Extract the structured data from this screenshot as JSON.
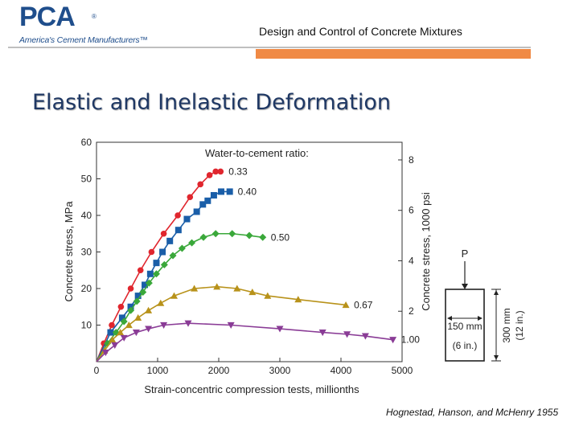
{
  "header": {
    "logo_text": "PCA",
    "logo_registered": "®",
    "logo_tagline": "America's Cement Manufacturers™",
    "title": "Design and Control of Concrete Mixtures"
  },
  "slide": {
    "title": "Elastic and Inelastic Deformation",
    "credit": "Hognestad, Hanson, and McHenry 1955"
  },
  "colors": {
    "brand_blue": "#1f4e8c",
    "accent_orange": "#f08a45",
    "title_navy": "#1f3864"
  },
  "chart_data": {
    "type": "line",
    "xlabel": "Strain-concentric compression tests, millionths",
    "ylabel": "Concrete stress, MPa",
    "ylabel_right": "Concrete stress, 1000 psi",
    "xlim": [
      0,
      5000
    ],
    "ylim": [
      0,
      60
    ],
    "y2lim": [
      0,
      8.7
    ],
    "x_ticks": [
      0,
      1000,
      2000,
      3000,
      4000,
      5000
    ],
    "y_ticks": [
      10,
      20,
      30,
      40,
      50,
      60
    ],
    "y2_ticks": [
      2,
      4,
      6,
      8
    ],
    "grid": false,
    "legend_title": "Water-to-cement ratio:",
    "series": [
      {
        "name": "0.33",
        "color": "#e0262e",
        "marker": "circle",
        "x": [
          0,
          120,
          250,
          400,
          560,
          720,
          900,
          1100,
          1330,
          1530,
          1700,
          1850,
          1950,
          2030
        ],
        "y": [
          0,
          5,
          10,
          15,
          20,
          25,
          30,
          35,
          40,
          45,
          48.5,
          51,
          52,
          52
        ]
      },
      {
        "name": "0.40",
        "color": "#1a5ea8",
        "marker": "square",
        "x": [
          0,
          230,
          420,
          560,
          680,
          790,
          880,
          980,
          1080,
          1200,
          1340,
          1480,
          1640,
          1740,
          1820,
          1920,
          2040,
          2180
        ],
        "y": [
          0,
          8,
          12,
          15,
          18,
          21,
          24,
          27,
          30,
          33,
          36,
          39,
          41,
          43,
          44,
          45.5,
          46.5,
          46.5
        ]
      },
      {
        "name": "0.50",
        "color": "#3aa83a",
        "marker": "diamond",
        "x": [
          0,
          180,
          320,
          450,
          560,
          660,
          760,
          860,
          980,
          1110,
          1250,
          1400,
          1560,
          1750,
          1950,
          2220,
          2500,
          2720
        ],
        "y": [
          0,
          5,
          8,
          11,
          14,
          16.5,
          19,
          21.5,
          24,
          26.5,
          29,
          31,
          32.5,
          34,
          35,
          35,
          34.5,
          34
        ]
      },
      {
        "name": "0.67",
        "color": "#b8921a",
        "marker": "triangle-up",
        "x": [
          0,
          130,
          260,
          390,
          530,
          680,
          850,
          1050,
          1270,
          1600,
          1970,
          2300,
          2550,
          2800,
          3300,
          4080
        ],
        "y": [
          0,
          3,
          6,
          8,
          10,
          12,
          14,
          16,
          18,
          20,
          20.5,
          20,
          19,
          18,
          17,
          15.5
        ]
      },
      {
        "name": "1.00",
        "color": "#8a3c96",
        "marker": "triangle-down",
        "x": [
          0,
          150,
          300,
          450,
          650,
          850,
          1100,
          1500,
          2200,
          3000,
          3700,
          4100,
          4400,
          4850
        ],
        "y": [
          0,
          2.5,
          4.5,
          6.5,
          8,
          9,
          10,
          10.5,
          10,
          9,
          8,
          7.5,
          7,
          6
        ]
      }
    ],
    "specimen": {
      "load_label": "P",
      "width_label_mm": "150 mm",
      "width_label_in": "(6 in.)",
      "height_label_mm": "300 mm",
      "height_label_in": "(12 in.)"
    }
  }
}
